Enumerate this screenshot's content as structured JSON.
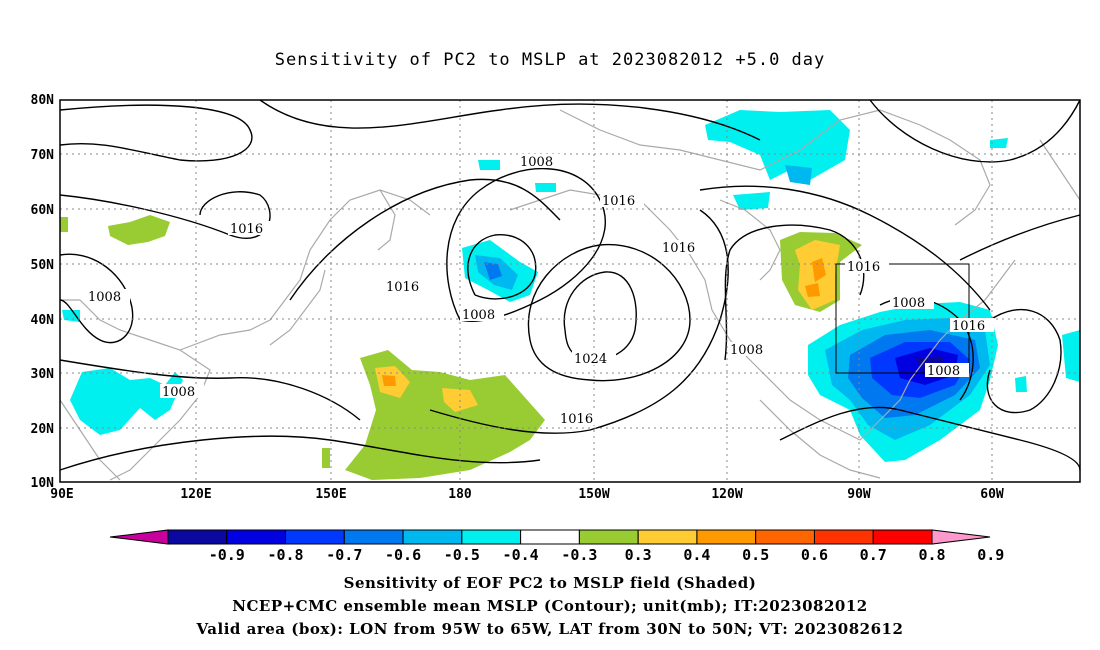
{
  "title": "Sensitivity of PC2 to MSLP at 2023082012 +5.0 day",
  "captions": {
    "line1": "Sensitivity of EOF PC2 to MSLP field (Shaded)",
    "line2": "NCEP+CMC ensemble mean MSLP (Contour); unit(mb); IT:2023082012",
    "line3": "Valid area (box): LON from 95W to 65W, LAT from 30N to 50N; VT: 2023082612"
  },
  "map": {
    "lat_labels": [
      "80N",
      "70N",
      "60N",
      "50N",
      "40N",
      "30N",
      "20N",
      "10N"
    ],
    "lon_labels": [
      "90E",
      "120E",
      "150E",
      "180",
      "150W",
      "120W",
      "90W",
      "60W"
    ],
    "contour_labels": [
      "1008",
      "1016",
      "1008",
      "1016",
      "1016",
      "1008",
      "1016",
      "1024",
      "1016",
      "1008",
      "1016",
      "1008",
      "1016",
      "1008",
      "1008"
    ]
  },
  "colorbar": {
    "labels": [
      "-0.9",
      "-0.8",
      "-0.7",
      "-0.6",
      "-0.5",
      "-0.4",
      "-0.3",
      "0.3",
      "0.4",
      "0.5",
      "0.6",
      "0.7",
      "0.8",
      "0.9"
    ],
    "colors": [
      "#c8009c",
      "#0a08a0",
      "#0000e0",
      "#0038ff",
      "#0078f0",
      "#00b8f0",
      "#00f0f0",
      "#ffffff",
      "#99cc33",
      "#ffcc33",
      "#ff9900",
      "#ff6600",
      "#ff3300",
      "#ff0000",
      "#ff99cc"
    ]
  }
}
